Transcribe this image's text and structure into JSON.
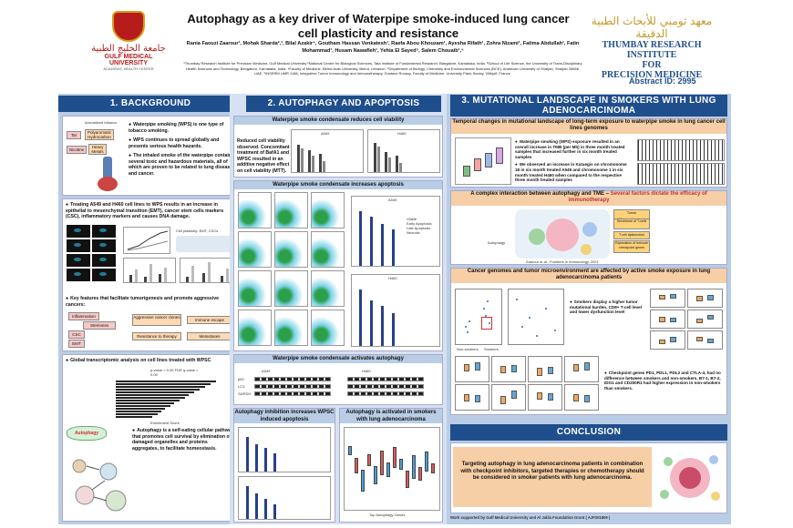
{
  "header": {
    "title": "Autophagy as a key driver of Waterpipe smoke-induced lung cancer cell plasticity and resistance",
    "authors": "Rania Faouzi Zaarour¹, Mohak Sharda²,³, Bilal Azakir⁴, Goutham Hassan Venkatesh¹, Raefa Abou Khouzam¹, Ayesha Rifath¹, Zohra Nizami¹, Fatima Abdullah¹, Fatin Mohammad¹, Husam Nawafleh¹, Yehia El Sayed⁵, Salem Chouaib¹,⁶",
    "affiliations": "¹Thumbay Research Institute for Precision Medicine, Gulf Medical University ²National Centre for Biological Sciences, Tata Institute of Fundamental Research, Bangalore, Karnataka, India. ³School of Life Science, the University of Trans-Disciplinary Health Sciences and Technology, Bengaluru, Karnataka, India. ⁴Faculty of Medicine, Beirut Arab University, Beirut, Lebanon. ⁵Department of Biology, Chemistry and Environmental Sciences (BCE), American University of Sharjah, Sharjah 26666, UAE. ⁶INSERM UMR 1186, Integrative Tumor Immunology and Immunotherapy, Gustave Roussy, Faculty of Medicine, University Paris-Saclay, Villejuif, France.",
    "abstract_id": "Abstract ID: 2995",
    "logo_left_ar": "جامعة الخليج الطبية",
    "logo_left_en": "GULF MEDICAL UNIVERSITY",
    "logo_left_sub": "ACADEMIC HEALTH CENTER",
    "logo_right_ar": "معهد ثومبي للأبحاث الطبية الدقيقة",
    "logo_right_en1": "THUMBAY RESEARCH INSTITUTE",
    "logo_right_en2": "FOR",
    "logo_right_en3": "PRECISION MEDICINE"
  },
  "colors": {
    "section_header": "#1f4e8c",
    "column_bg": "#b9cde6",
    "subheader_orange": "#f7cfa6",
    "logo_red": "#b71c1c",
    "logo_gold": "#c49a2a"
  },
  "background": {
    "heading": "1. BACKGROUND",
    "wps_points": [
      "Waterpipe smoking (WPS) is one type of tobacco smoking.",
      "WPS continues to spread globally and presents serious health hazards.",
      "The inhaled smoke of the waterpipe contains several toxic and hazardous materials, all of which are proven to be related to lung diseases and cancer."
    ],
    "diagram_labels": [
      "Tar",
      "Polyaromatic Hydrocarbon",
      "Nicotine",
      "Heavy Metals",
      "Aromatized tobacco"
    ],
    "treat_text": "Treating A549 and H460 cell lines to WPS results in an increase in epithelial to mesenchymal transition (EMT), cancer stem cells markers (CSC), inflammatory markers and causes DNA damage.",
    "fig_label": "Cell plasticity: EMT, CSCs",
    "key_text": "Key features that facilitate tumorigenesis and promote aggressive cancers:",
    "features": [
      "Aggressive cancer clones",
      "Immune escape",
      "Resistance to therapy",
      "Metastases"
    ],
    "feature_sources": [
      "Inflammation",
      "CSC",
      "EMT",
      "Stemness"
    ],
    "global_text": "Global transcriptomic analysis on cell lines treated with WPSC",
    "enrichment_label": "Enrichment Score",
    "pval_label": "p-value < 0.05  FDR q-value < 0.05",
    "autophagy_badge": "Autophagy",
    "autophagy_text": "Autophagy is a self-eating cellular pathway that promotes cell survival by elimination of damaged organelles and proteins aggregates, to facilitate homeostasis."
  },
  "autophagy_apoptosis": {
    "heading": "2. AUTOPHAGY AND APOPTOSIS",
    "viability_header": "Waterpipe smoke condensate reduces cell viability",
    "viability_text": "Reduced cell viability observed. Concomitant treatment of BafA1 and WPSC resulted in an additive negative effect on cell viability (MTT).",
    "apoptosis_header": "Waterpipe smoke condensate increases apoptosis",
    "activates_header": "Waterpipe smoke condensate activates autophagy",
    "inhibition_header": "Autophagy inhibition increases WPSC induced apoptosis",
    "adeno_header": "Autophagy is activated in smokers with lung adenocarcinoma",
    "cell_labels": [
      "A549",
      "H460"
    ],
    "wb_labels": [
      "p62",
      "LC3",
      "GAPDH"
    ],
    "legend_items": [
      "Viable",
      "Early Apoptosis",
      "Late Apoptosis",
      "Necrotic"
    ],
    "adeno_axis": "Top Autophagy Genes"
  },
  "mutational": {
    "heading": "3. MUTATIONAL LANDSCAPE IN SMOKERS WITH LUNG ADENOCARCINOMA",
    "temporal_header": "Temporal changes in mutational landscape of long-term exposure to waterpipe smoke in lung cancer cell lines genomes",
    "temporal_points": [
      "Waterpipe smoking (WPS) exposure resulted in an overall increase in TMB (per Mb) in three month treated samples that increased further in six month treated samples",
      "We observed an increase in Kataegis on chromosome 18 in six month treated A549 and chromosome 1 in six month treated H460 when compared to the respective three month treated samples"
    ],
    "complex_header": "A complex interaction between autophagy and TME –",
    "complex_header2": "Several factors dictate the efficacy of immunotherapy",
    "tme_boxes": [
      "Tumor Microenvironment",
      "Secretome of T-cells",
      "Autophagy",
      "T-cell dysfunction",
      "Exploration of immune checkpoint genes"
    ],
    "tme_caption": "Zaarour et al., Frontiers in Immunology, 2021",
    "genome_header": "Cancer genomes and tumor microenvironment are affected by active smoke exposure in lung adenocarcinoma patients",
    "smokers_point": "Smokers display a higher tumor mutational burden, CD8+ T-cell level and lower dysfunction level",
    "checkpoint_point": "Checkpoint genes PD1, PDL1, PDL2 and CTLA-4, had no difference between smokers and non-smokers, B7-1, B7-2, IDO1 and CD200R1 had higher expression in non-smokers than smokers.",
    "group_labels": [
      "Non-smokers",
      "Smokers"
    ]
  },
  "conclusion": {
    "heading": "CONCLUSION",
    "text": "Targeting autophagy in lung adenocarcinoma patients in combination with checkpoint inhibitors, targeted therapies or chemotherapy should be considered in smoker patients with lung adenocarcinoma.",
    "funding": "Work supported by Gulf Medical University and Al Jalila Foundation Grant ( AJF201809 )"
  }
}
